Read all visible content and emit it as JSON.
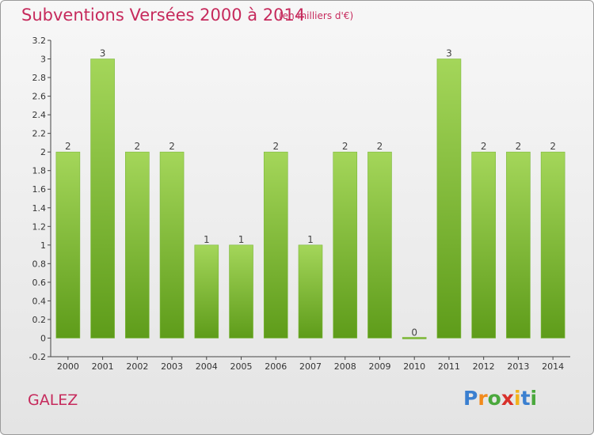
{
  "header": {
    "title": "Subventions Versées 2000 à 2014",
    "unit": "(en milliers d'€)"
  },
  "commune": "GALEZ",
  "logo": {
    "letters": [
      "P",
      "r",
      "o",
      "x",
      "i",
      "t",
      "i"
    ],
    "colors": [
      "#3a7fd0",
      "#f28a1c",
      "#4aa83c",
      "#d8302a",
      "#f2b21c",
      "#3a7fd0",
      "#4aa83c"
    ]
  },
  "colors": {
    "bar_top": "#a4d65a",
    "bar_bottom": "#5e9c1a",
    "title": "#c62a5c"
  },
  "chart_data": {
    "type": "bar",
    "title": "Subventions Versées 2000 à 2014",
    "xlabel": "",
    "ylabel": "",
    "ylim": [
      -0.2,
      3.2
    ],
    "yticks": [
      -0.2,
      0,
      0.2,
      0.4,
      0.6,
      0.8,
      1,
      1.2,
      1.4,
      1.6,
      1.8,
      2,
      2.2,
      2.4,
      2.6,
      2.8,
      3,
      3.2
    ],
    "ytick_labels": [
      "-0.2",
      "0",
      "0.2",
      "0.4",
      "0.6",
      "0.8",
      "1",
      "1.2",
      "1.4",
      "1.6",
      "1.8",
      "2",
      "2.2",
      "2.4",
      "2.6",
      "2.8",
      "3",
      "3.2"
    ],
    "categories": [
      "2000",
      "2001",
      "2002",
      "2003",
      "2004",
      "2005",
      "2006",
      "2007",
      "2008",
      "2009",
      "2010",
      "2011",
      "2012",
      "2013",
      "2014"
    ],
    "values": [
      2,
      3,
      2,
      2,
      1,
      1,
      2,
      1,
      2,
      2,
      0,
      3,
      2,
      2,
      2
    ],
    "data_labels": [
      "2",
      "3",
      "2",
      "2",
      "1",
      "1",
      "2",
      "1",
      "2",
      "2",
      "0",
      "3",
      "2",
      "2",
      "2"
    ],
    "grid": false
  }
}
